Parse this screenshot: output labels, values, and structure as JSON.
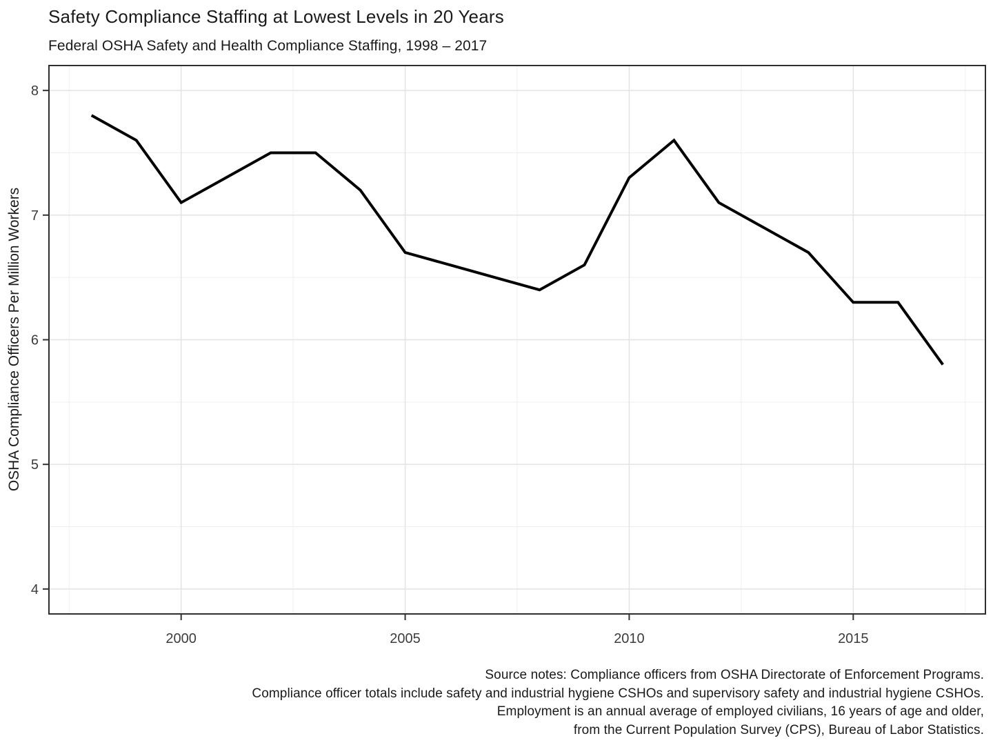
{
  "header": {
    "title": "Safety Compliance Staffing at Lowest Levels in 20 Years",
    "subtitle": "Federal OSHA Safety and Health Compliance Staffing, 1998 – 2017"
  },
  "y_axis": {
    "label": "OSHA Compliance Officers Per Million Workers"
  },
  "notes": {
    "lines": [
      "Source notes: Compliance officers from OSHA Directorate of Enforcement Programs.",
      "Compliance officer totals include safety and industrial hygiene CSHOs and supervisory safety and industrial hygiene CSHOs.",
      "Employment is an annual average of employed civilians, 16 years of age and older,",
      "from the Current Population Survey (CPS), Bureau of Labor Statistics."
    ]
  },
  "chart_data": {
    "type": "line",
    "title": "Safety Compliance Staffing at Lowest Levels in 20 Years",
    "subtitle": "Federal OSHA Safety and Health Compliance Staffing, 1998 – 2017",
    "xlabel": "",
    "ylabel": "OSHA Compliance Officers Per Million Workers",
    "x": [
      1998,
      1999,
      2000,
      2001,
      2002,
      2003,
      2004,
      2005,
      2006,
      2007,
      2008,
      2009,
      2010,
      2011,
      2012,
      2013,
      2014,
      2015,
      2016,
      2017
    ],
    "series": [
      {
        "name": "OSHA compliance officers per million workers",
        "values": [
          7.8,
          7.6,
          7.1,
          7.3,
          7.5,
          7.5,
          7.2,
          6.7,
          6.6,
          6.5,
          6.4,
          6.6,
          7.3,
          7.6,
          7.1,
          6.9,
          6.7,
          6.3,
          6.3,
          5.8
        ]
      }
    ],
    "xlim": [
      1997.05,
      2017.95
    ],
    "ylim": [
      3.8,
      8.2
    ],
    "x_ticks": [
      2000,
      2005,
      2010,
      2015
    ],
    "y_ticks": [
      4,
      5,
      6,
      7,
      8
    ],
    "x_minor_ticks": [
      1997.5,
      2002.5,
      2007.5,
      2012.5,
      2017.5
    ],
    "y_minor_ticks": [
      4.5,
      5.5,
      6.5,
      7.5
    ],
    "grid": "major and minor, light gray on white",
    "legend": "none",
    "colors": {
      "line": "#000000",
      "grid_major": "#e3e3e3",
      "grid_minor": "#efefef",
      "panel_border": "#2e2e2e",
      "tick_mark": "#333333",
      "axis_text": "#3c3c3c",
      "text": "#1a1a1a"
    }
  }
}
